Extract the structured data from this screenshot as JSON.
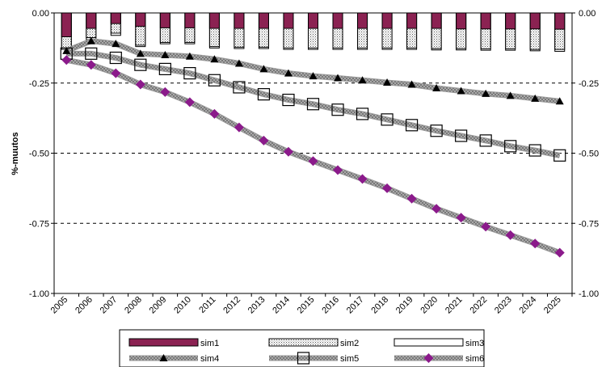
{
  "chart_data": {
    "type": "bar+line",
    "title": "",
    "xlabel": "",
    "ylabel": "%-muutos",
    "ylim": [
      -1.0,
      0.0
    ],
    "yticks": [
      "0.00",
      "-0.25",
      "-0.50",
      "-0.75",
      "-1.00"
    ],
    "ytick_values": [
      0,
      -0.25,
      -0.5,
      -0.75,
      -1.0
    ],
    "grid": "dashed horizontal",
    "legend_position": "bottom",
    "categories": [
      "2005",
      "2006",
      "2007",
      "2008",
      "2009",
      "2010",
      "2011",
      "2012",
      "2013",
      "2014",
      "2015",
      "2016",
      "2017",
      "2018",
      "2019",
      "2020",
      "2021",
      "2022",
      "2023",
      "2024",
      "2025"
    ],
    "bar_series": [
      {
        "name": "sim1",
        "style": "maroon-fill",
        "color": "#8B2252",
        "values": [
          -0.085,
          -0.055,
          -0.038,
          -0.048,
          -0.053,
          -0.053,
          -0.055,
          -0.055,
          -0.055,
          -0.055,
          -0.055,
          -0.055,
          -0.055,
          -0.055,
          -0.055,
          -0.055,
          -0.057,
          -0.057,
          -0.057,
          -0.057,
          -0.058
        ]
      },
      {
        "name": "sim2",
        "style": "dotted-fill",
        "values": [
          -0.125,
          -0.088,
          -0.072,
          -0.115,
          -0.105,
          -0.105,
          -0.12,
          -0.122,
          -0.122,
          -0.125,
          -0.125,
          -0.125,
          -0.125,
          -0.125,
          -0.125,
          -0.127,
          -0.127,
          -0.128,
          -0.128,
          -0.13,
          -0.13
        ]
      },
      {
        "name": "sim3",
        "style": "white-fill",
        "values": [
          -0.13,
          -0.095,
          -0.08,
          -0.12,
          -0.11,
          -0.11,
          -0.125,
          -0.127,
          -0.127,
          -0.13,
          -0.13,
          -0.13,
          -0.13,
          -0.13,
          -0.13,
          -0.132,
          -0.132,
          -0.133,
          -0.133,
          -0.135,
          -0.137
        ]
      }
    ],
    "line_series": [
      {
        "name": "sim4",
        "marker": "triangle",
        "values": [
          -0.135,
          -0.1,
          -0.11,
          -0.145,
          -0.15,
          -0.155,
          -0.165,
          -0.18,
          -0.2,
          -0.215,
          -0.225,
          -0.232,
          -0.24,
          -0.248,
          -0.255,
          -0.268,
          -0.278,
          -0.288,
          -0.295,
          -0.305,
          -0.315
        ]
      },
      {
        "name": "sim5",
        "marker": "square",
        "values": [
          -0.145,
          -0.145,
          -0.16,
          -0.185,
          -0.2,
          -0.215,
          -0.24,
          -0.265,
          -0.29,
          -0.31,
          -0.325,
          -0.345,
          -0.36,
          -0.38,
          -0.4,
          -0.42,
          -0.438,
          -0.455,
          -0.475,
          -0.49,
          -0.508
        ]
      },
      {
        "name": "sim6",
        "marker": "diamond",
        "color": "#8B1A8B",
        "values": [
          -0.168,
          -0.185,
          -0.215,
          -0.255,
          -0.282,
          -0.318,
          -0.36,
          -0.408,
          -0.455,
          -0.495,
          -0.528,
          -0.56,
          -0.592,
          -0.625,
          -0.662,
          -0.698,
          -0.73,
          -0.762,
          -0.792,
          -0.822,
          -0.855
        ]
      }
    ]
  }
}
